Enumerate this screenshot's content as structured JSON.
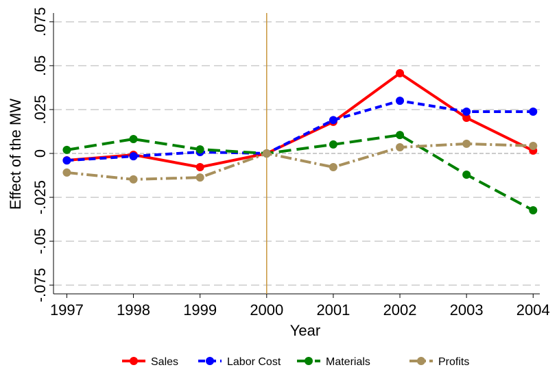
{
  "chart_data": {
    "type": "line",
    "x_label": "Year",
    "y_label": "Effect of the MW",
    "x": [
      1997,
      1998,
      1999,
      2000,
      2001,
      2002,
      2003,
      2004
    ],
    "xlim": [
      1996.8,
      2004.1
    ],
    "xticks": [
      1997,
      1998,
      1999,
      2000,
      2001,
      2002,
      2003,
      2004
    ],
    "ylim": [
      -0.08,
      0.08
    ],
    "yticks": [
      {
        "value": -0.075,
        "label": "-.075"
      },
      {
        "value": -0.05,
        "label": "-.05"
      },
      {
        "value": -0.025,
        "label": "-.025"
      },
      0,
      {
        "value": 0.025,
        "label": ".025"
      },
      {
        "value": 0.05,
        "label": ".05"
      },
      {
        "value": 0.075,
        "label": ".075"
      }
    ],
    "grid": true,
    "vline": 2000,
    "vline_color": "#c8963c",
    "legend": "bottom",
    "series": [
      {
        "name": "Sales",
        "color": "#ff0000",
        "dash": "solid",
        "values": [
          -0.0039,
          -0.0008,
          -0.0078,
          0,
          0.018,
          0.0457,
          0.0203,
          0.0016
        ]
      },
      {
        "name": "Labor Cost",
        "color": "#0000ff",
        "dash": "dash",
        "values": [
          -0.004,
          -0.0016,
          0.0008,
          0,
          0.019,
          0.03,
          0.0238,
          0.0238
        ]
      },
      {
        "name": "Materials",
        "color": "#008000",
        "dash": "longdash",
        "values": [
          0.002,
          0.0082,
          0.0023,
          0,
          0.0051,
          0.0105,
          -0.0121,
          -0.0324
        ]
      },
      {
        "name": "Profits",
        "color": "#a8905c",
        "dash": "dashdot",
        "values": [
          -0.0109,
          -0.0148,
          -0.0137,
          0,
          -0.0078,
          0.0035,
          0.0055,
          0.0043
        ]
      }
    ]
  }
}
